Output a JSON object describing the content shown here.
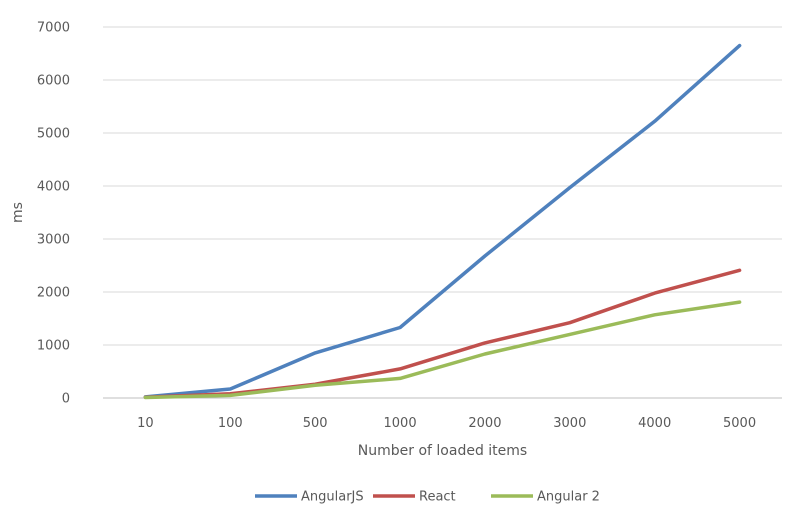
{
  "chart_data": {
    "type": "line",
    "title": "",
    "xlabel": "Number of loaded items",
    "ylabel": "ms",
    "categories": [
      "10",
      "100",
      "500",
      "1000",
      "2000",
      "3000",
      "4000",
      "5000"
    ],
    "ylim": [
      0,
      7000
    ],
    "ytick_step": 1000,
    "grid": true,
    "legend_position": "bottom",
    "series": [
      {
        "name": "AngularJS",
        "color": "#4f81bd",
        "values": [
          20,
          170,
          850,
          1330,
          2680,
          3970,
          5220,
          6650
        ]
      },
      {
        "name": "React",
        "color": "#c0504d",
        "values": [
          15,
          80,
          260,
          550,
          1040,
          1420,
          1980,
          2410
        ]
      },
      {
        "name": "Angular 2",
        "color": "#9bbb59",
        "values": [
          10,
          50,
          240,
          370,
          830,
          1200,
          1570,
          1810
        ]
      }
    ]
  }
}
